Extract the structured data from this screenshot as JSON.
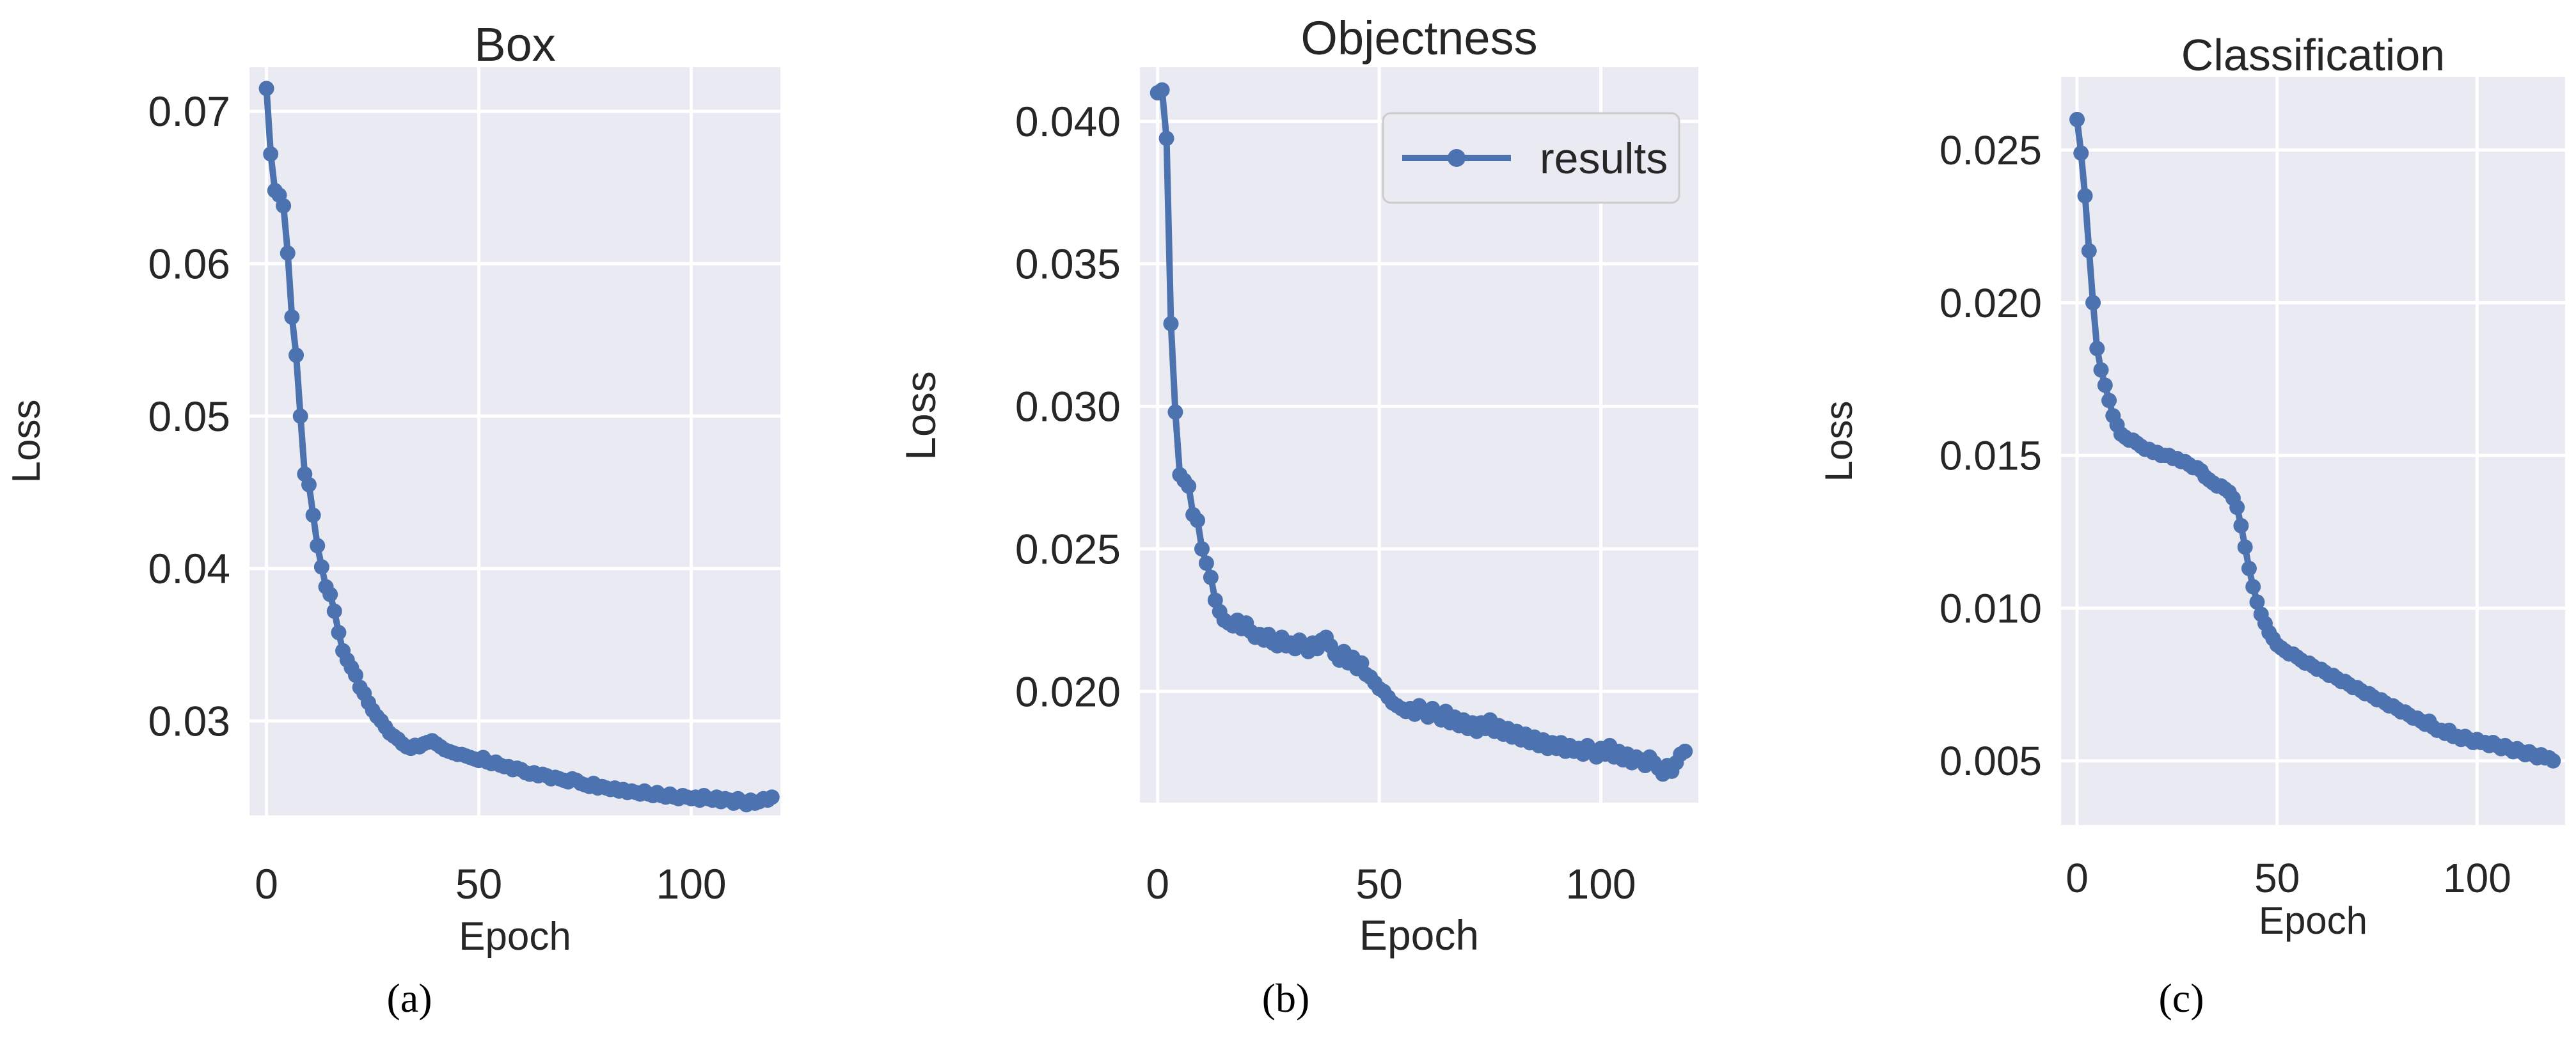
{
  "figure": {
    "captions": [
      "(a)",
      "(b)",
      "(c)"
    ]
  },
  "chart_data": [
    {
      "type": "line",
      "title": "Box",
      "xlabel": "Epoch",
      "ylabel": "Loss",
      "xticks": [
        0,
        50,
        100
      ],
      "yticks": [
        0.03,
        0.04,
        0.05,
        0.06,
        0.07
      ],
      "xlim": [
        -4,
        121
      ],
      "ylim": [
        0.0238,
        0.0729
      ],
      "grid": true,
      "series": [
        {
          "color": "#4c72b0",
          "x": [
            0,
            1,
            2,
            3,
            4,
            5,
            6,
            7,
            8,
            9,
            10,
            11,
            12,
            13,
            14,
            15,
            16,
            17,
            18,
            19,
            20,
            21,
            22,
            23,
            24,
            25,
            26,
            27,
            28,
            29,
            30,
            31,
            32,
            33,
            34,
            35,
            36,
            37,
            38,
            39,
            40,
            41,
            42,
            43,
            44,
            45,
            46,
            47,
            48,
            49,
            50,
            51,
            52,
            53,
            54,
            55,
            56,
            57,
            58,
            59,
            60,
            61,
            62,
            63,
            64,
            65,
            66,
            67,
            68,
            69,
            70,
            71,
            72,
            73,
            74,
            75,
            76,
            77,
            78,
            79,
            80,
            81,
            82,
            83,
            84,
            85,
            86,
            87,
            88,
            89,
            90,
            91,
            92,
            93,
            94,
            95,
            96,
            97,
            98,
            99,
            100,
            101,
            102,
            103,
            104,
            105,
            106,
            107,
            108,
            109,
            110,
            111,
            112,
            113,
            114,
            115,
            116,
            117,
            118,
            119
          ],
          "values": [
            0.0715,
            0.0672,
            0.0648,
            0.0645,
            0.0638,
            0.0607,
            0.0565,
            0.054,
            0.05,
            0.0462,
            0.0455,
            0.0435,
            0.0415,
            0.0401,
            0.0388,
            0.0383,
            0.0372,
            0.0358,
            0.0346,
            0.034,
            0.0335,
            0.033,
            0.0322,
            0.0318,
            0.0312,
            0.0307,
            0.0303,
            0.03,
            0.0296,
            0.0292,
            0.029,
            0.0288,
            0.0285,
            0.0283,
            0.0282,
            0.0284,
            0.0283,
            0.0285,
            0.0286,
            0.0287,
            0.0285,
            0.0283,
            0.0281,
            0.028,
            0.0279,
            0.0278,
            0.0278,
            0.0277,
            0.0276,
            0.0275,
            0.0274,
            0.0276,
            0.0273,
            0.0272,
            0.0273,
            0.0271,
            0.027,
            0.027,
            0.0268,
            0.0269,
            0.0268,
            0.0266,
            0.0265,
            0.0266,
            0.0264,
            0.0265,
            0.0264,
            0.0262,
            0.0263,
            0.0262,
            0.0261,
            0.026,
            0.0262,
            0.0261,
            0.0259,
            0.0258,
            0.0257,
            0.0259,
            0.0256,
            0.0257,
            0.0256,
            0.0255,
            0.0256,
            0.0254,
            0.0255,
            0.0253,
            0.0254,
            0.0253,
            0.0252,
            0.0254,
            0.0252,
            0.0251,
            0.0253,
            0.0251,
            0.025,
            0.0252,
            0.025,
            0.0249,
            0.0251,
            0.025,
            0.0249,
            0.025,
            0.0248,
            0.0251,
            0.0249,
            0.0248,
            0.025,
            0.0247,
            0.0249,
            0.0248,
            0.0246,
            0.0249,
            0.0247,
            0.0245,
            0.0248,
            0.0246,
            0.0247,
            0.0249,
            0.0248,
            0.025
          ]
        }
      ]
    },
    {
      "type": "line",
      "title": "Objectness",
      "xlabel": "Epoch",
      "ylabel": "Loss",
      "xticks": [
        0,
        50,
        100
      ],
      "yticks": [
        0.02,
        0.025,
        0.03,
        0.035,
        0.04
      ],
      "ytick_labels": [
        "0.020",
        "0.025",
        "0.030",
        "0.035",
        "0.040"
      ],
      "xlim": [
        -4,
        122
      ],
      "ylim": [
        0.0161,
        0.0419
      ],
      "grid": true,
      "legend": {
        "position": "top-right",
        "entries": [
          "results"
        ]
      },
      "series": [
        {
          "name": "results",
          "color": "#4c72b0",
          "x": [
            0,
            1,
            2,
            3,
            4,
            5,
            6,
            7,
            8,
            9,
            10,
            11,
            12,
            13,
            14,
            15,
            16,
            17,
            18,
            19,
            20,
            21,
            22,
            23,
            24,
            25,
            26,
            27,
            28,
            29,
            30,
            31,
            32,
            33,
            34,
            35,
            36,
            37,
            38,
            39,
            40,
            41,
            42,
            43,
            44,
            45,
            46,
            47,
            48,
            49,
            50,
            51,
            52,
            53,
            54,
            55,
            56,
            57,
            58,
            59,
            60,
            61,
            62,
            63,
            64,
            65,
            66,
            67,
            68,
            69,
            70,
            71,
            72,
            73,
            74,
            75,
            76,
            77,
            78,
            79,
            80,
            81,
            82,
            83,
            84,
            85,
            86,
            87,
            88,
            89,
            90,
            91,
            92,
            93,
            94,
            95,
            96,
            97,
            98,
            99,
            100,
            101,
            102,
            103,
            104,
            105,
            106,
            107,
            108,
            109,
            110,
            111,
            112,
            113,
            114,
            115,
            116,
            117,
            118,
            119
          ],
          "values": [
            0.041,
            0.0411,
            0.0394,
            0.0329,
            0.0298,
            0.0276,
            0.0274,
            0.0272,
            0.0262,
            0.026,
            0.025,
            0.0245,
            0.024,
            0.0232,
            0.0228,
            0.0225,
            0.0224,
            0.0223,
            0.0225,
            0.0222,
            0.0224,
            0.0221,
            0.0219,
            0.022,
            0.0218,
            0.022,
            0.0217,
            0.0216,
            0.0219,
            0.0216,
            0.0217,
            0.0215,
            0.0218,
            0.0216,
            0.0214,
            0.0217,
            0.0215,
            0.0218,
            0.0219,
            0.0216,
            0.0213,
            0.0211,
            0.0214,
            0.021,
            0.0212,
            0.0208,
            0.021,
            0.0206,
            0.0205,
            0.0203,
            0.0201,
            0.02,
            0.0198,
            0.0196,
            0.0195,
            0.0194,
            0.0193,
            0.0194,
            0.0192,
            0.0195,
            0.0193,
            0.0191,
            0.0194,
            0.0192,
            0.019,
            0.0193,
            0.0189,
            0.0191,
            0.0188,
            0.019,
            0.0187,
            0.0189,
            0.0186,
            0.0189,
            0.0187,
            0.019,
            0.0186,
            0.0188,
            0.0185,
            0.0187,
            0.0184,
            0.0186,
            0.0183,
            0.0185,
            0.0182,
            0.0184,
            0.0181,
            0.0183,
            0.018,
            0.0182,
            0.018,
            0.0182,
            0.0179,
            0.0181,
            0.0179,
            0.018,
            0.0178,
            0.0181,
            0.0179,
            0.0177,
            0.018,
            0.0178,
            0.0181,
            0.0177,
            0.0179,
            0.0176,
            0.0178,
            0.0175,
            0.0177,
            0.0176,
            0.0174,
            0.0177,
            0.0175,
            0.0173,
            0.0171,
            0.0174,
            0.0172,
            0.0175,
            0.0178,
            0.0179
          ]
        }
      ]
    },
    {
      "type": "line",
      "title": "Classification",
      "xlabel": "Epoch",
      "ylabel": "Loss",
      "xticks": [
        0,
        50,
        100
      ],
      "yticks": [
        0.005,
        0.01,
        0.015,
        0.02,
        0.025
      ],
      "ytick_labels": [
        "0.005",
        "0.010",
        "0.015",
        "0.020",
        "0.025"
      ],
      "xlim": [
        -4,
        122
      ],
      "ylim": [
        0.0029,
        0.0274
      ],
      "grid": true,
      "series": [
        {
          "color": "#4c72b0",
          "x": [
            0,
            1,
            2,
            3,
            4,
            5,
            6,
            7,
            8,
            9,
            10,
            11,
            12,
            13,
            14,
            15,
            16,
            17,
            18,
            19,
            20,
            21,
            22,
            23,
            24,
            25,
            26,
            27,
            28,
            29,
            30,
            31,
            32,
            33,
            34,
            35,
            36,
            37,
            38,
            39,
            40,
            41,
            42,
            43,
            44,
            45,
            46,
            47,
            48,
            49,
            50,
            51,
            52,
            53,
            54,
            55,
            56,
            57,
            58,
            59,
            60,
            61,
            62,
            63,
            64,
            65,
            66,
            67,
            68,
            69,
            70,
            71,
            72,
            73,
            74,
            75,
            76,
            77,
            78,
            79,
            80,
            81,
            82,
            83,
            84,
            85,
            86,
            87,
            88,
            89,
            90,
            91,
            92,
            93,
            94,
            95,
            96,
            97,
            98,
            99,
            100,
            101,
            102,
            103,
            104,
            105,
            106,
            107,
            108,
            109,
            110,
            111,
            112,
            113,
            114,
            115,
            116,
            117,
            118,
            119
          ],
          "values": [
            0.026,
            0.0249,
            0.0235,
            0.0217,
            0.02,
            0.0185,
            0.0178,
            0.0173,
            0.0168,
            0.0163,
            0.016,
            0.0157,
            0.0156,
            0.0155,
            0.0155,
            0.0154,
            0.0153,
            0.0152,
            0.0152,
            0.0151,
            0.0151,
            0.015,
            0.015,
            0.015,
            0.0149,
            0.0149,
            0.0148,
            0.0148,
            0.0147,
            0.0146,
            0.0146,
            0.0145,
            0.0143,
            0.0142,
            0.0141,
            0.014,
            0.014,
            0.0139,
            0.0138,
            0.0136,
            0.0133,
            0.0127,
            0.012,
            0.0113,
            0.0107,
            0.0102,
            0.0098,
            0.0095,
            0.0092,
            0.009,
            0.0088,
            0.0087,
            0.0086,
            0.0085,
            0.0085,
            0.0084,
            0.0083,
            0.0082,
            0.0082,
            0.0081,
            0.008,
            0.008,
            0.0079,
            0.0078,
            0.0078,
            0.0077,
            0.0076,
            0.0076,
            0.0075,
            0.0074,
            0.0074,
            0.0073,
            0.0072,
            0.0072,
            0.0071,
            0.007,
            0.007,
            0.0069,
            0.0068,
            0.0068,
            0.0067,
            0.0066,
            0.0066,
            0.0065,
            0.0064,
            0.0064,
            0.0063,
            0.0062,
            0.0063,
            0.0061,
            0.006,
            0.006,
            0.0059,
            0.006,
            0.0058,
            0.0058,
            0.0057,
            0.0058,
            0.0057,
            0.0056,
            0.0057,
            0.0056,
            0.0056,
            0.0055,
            0.0056,
            0.0055,
            0.0054,
            0.0055,
            0.0054,
            0.0053,
            0.0054,
            0.0053,
            0.0052,
            0.0053,
            0.0052,
            0.0051,
            0.0052,
            0.0051,
            0.0051,
            0.005
          ]
        }
      ]
    }
  ]
}
